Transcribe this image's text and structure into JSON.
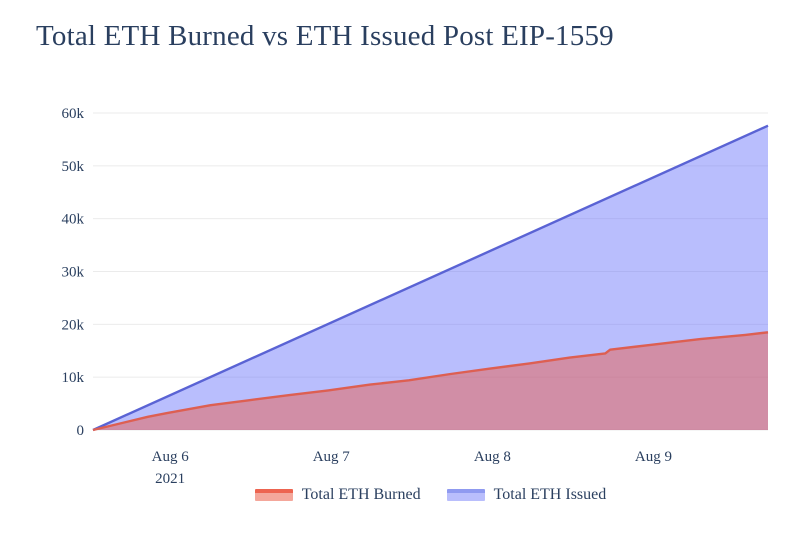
{
  "page": {
    "background": "#ffffff"
  },
  "chart_data": {
    "type": "area",
    "title": "Total ETH Burned vs ETH Issued Post EIP-1559",
    "title_color": "#2a3f5f",
    "axis_label_color": "#2a3f5f",
    "grid_color": "#ebebeb",
    "grid": true,
    "legend_position": "bottom-center",
    "x_axis": {
      "unit": "days since EIP-1559 activation",
      "range": [
        0,
        4.19
      ],
      "ticks": [
        {
          "pos": 0.479,
          "label": "Aug 6",
          "sublabel": "2021"
        },
        {
          "pos": 1.479,
          "label": "Aug 7"
        },
        {
          "pos": 2.479,
          "label": "Aug 8"
        },
        {
          "pos": 3.479,
          "label": "Aug 9"
        }
      ]
    },
    "y_axis": {
      "unit": "ETH",
      "range": [
        0,
        60000
      ],
      "ticks": [
        {
          "value": 0,
          "label": "0"
        },
        {
          "value": 10000,
          "label": "10k"
        },
        {
          "value": 20000,
          "label": "20k"
        },
        {
          "value": 30000,
          "label": "30k"
        },
        {
          "value": 40000,
          "label": "40k"
        },
        {
          "value": 50000,
          "label": "50k"
        },
        {
          "value": 60000,
          "label": "60k"
        }
      ]
    },
    "series": [
      {
        "name": "Total ETH Issued",
        "line_color": "#5a63d4",
        "fill_color": "rgba(99,110,250,0.45)",
        "swatch_line": "#8f9af0",
        "swatch_fill": "#b9befc",
        "points": [
          [
            0,
            0
          ],
          [
            4.19,
            57600
          ]
        ]
      },
      {
        "name": "Total ETH Burned",
        "line_color": "#dd5f52",
        "fill_color": "rgba(239,85,59,0.45)",
        "swatch_line": "#ed6450",
        "swatch_fill": "#f4a79b",
        "points": [
          [
            0.0,
            0
          ],
          [
            0.34,
            2500
          ],
          [
            0.46,
            3200
          ],
          [
            0.73,
            4700
          ],
          [
            0.96,
            5600
          ],
          [
            1.22,
            6600
          ],
          [
            1.46,
            7500
          ],
          [
            1.72,
            8600
          ],
          [
            1.96,
            9400
          ],
          [
            2.22,
            10600
          ],
          [
            2.46,
            11600
          ],
          [
            2.71,
            12600
          ],
          [
            2.96,
            13700
          ],
          [
            3.18,
            14500
          ],
          [
            3.21,
            15200
          ],
          [
            3.46,
            16100
          ],
          [
            3.77,
            17200
          ],
          [
            4.05,
            18000
          ],
          [
            4.19,
            18500
          ]
        ]
      }
    ],
    "legend_items": [
      {
        "label": "Total ETH Burned",
        "series": "Total ETH Burned"
      },
      {
        "label": "Total ETH Issued",
        "series": "Total ETH Issued"
      }
    ]
  }
}
